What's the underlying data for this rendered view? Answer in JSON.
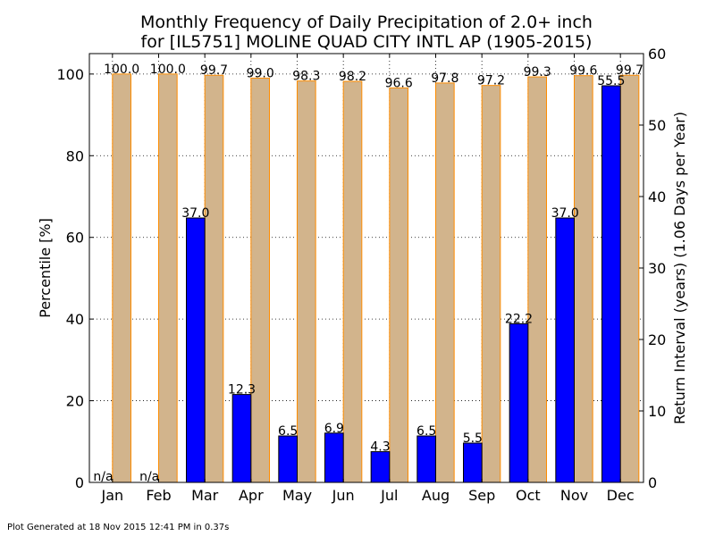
{
  "chart_data": {
    "type": "bar",
    "title_line1": "Monthly Frequency of Daily Precipitation of 2.0+ inch",
    "title_line2": "for [IL5751] MOLINE QUAD CITY INTL AP (1905-2015)",
    "ylabel_left": "Percentile [%]",
    "ylabel_right": "Return Interval (years) (1.06 Days per Year)",
    "ylim_left": [
      0,
      105
    ],
    "ylim_right": [
      0,
      60
    ],
    "yticks_left": [
      0,
      20,
      40,
      60,
      80,
      100
    ],
    "yticks_right": [
      0,
      10,
      20,
      30,
      40,
      50,
      60
    ],
    "grid": true,
    "categories": [
      "Jan",
      "Feb",
      "Mar",
      "Apr",
      "May",
      "Jun",
      "Jul",
      "Aug",
      "Sep",
      "Oct",
      "Nov",
      "Dec"
    ],
    "series": [
      {
        "name": "Return Interval",
        "axis": "right",
        "color": "#0000ff",
        "values": [
          null,
          null,
          37.0,
          12.3,
          6.5,
          6.9,
          4.3,
          6.5,
          5.5,
          22.2,
          37.0,
          55.5
        ],
        "labels": [
          "n/a",
          "n/a",
          "37.0",
          "12.3",
          "6.5",
          "6.9",
          "4.3",
          "6.5",
          "5.5",
          "22.2",
          "37.0",
          "55.5"
        ]
      },
      {
        "name": "Percentile",
        "axis": "left",
        "color": "#d2b48c",
        "edge_color": "#ff8c00",
        "values": [
          100.0,
          100.0,
          99.7,
          99.0,
          98.3,
          98.2,
          96.6,
          97.8,
          97.2,
          99.3,
          99.6,
          99.7
        ],
        "labels": [
          "100.0",
          "100.0",
          "99.7",
          "99.0",
          "98.3",
          "98.2",
          "96.6",
          "97.8",
          "97.2",
          "99.3",
          "99.6",
          "99.7"
        ]
      }
    ]
  },
  "footer": "Plot Generated at 18 Nov 2015 12:41 PM in 0.37s",
  "colors": {
    "left_axis_label": "#d2b48c",
    "right_axis_label": "#0000ff"
  }
}
